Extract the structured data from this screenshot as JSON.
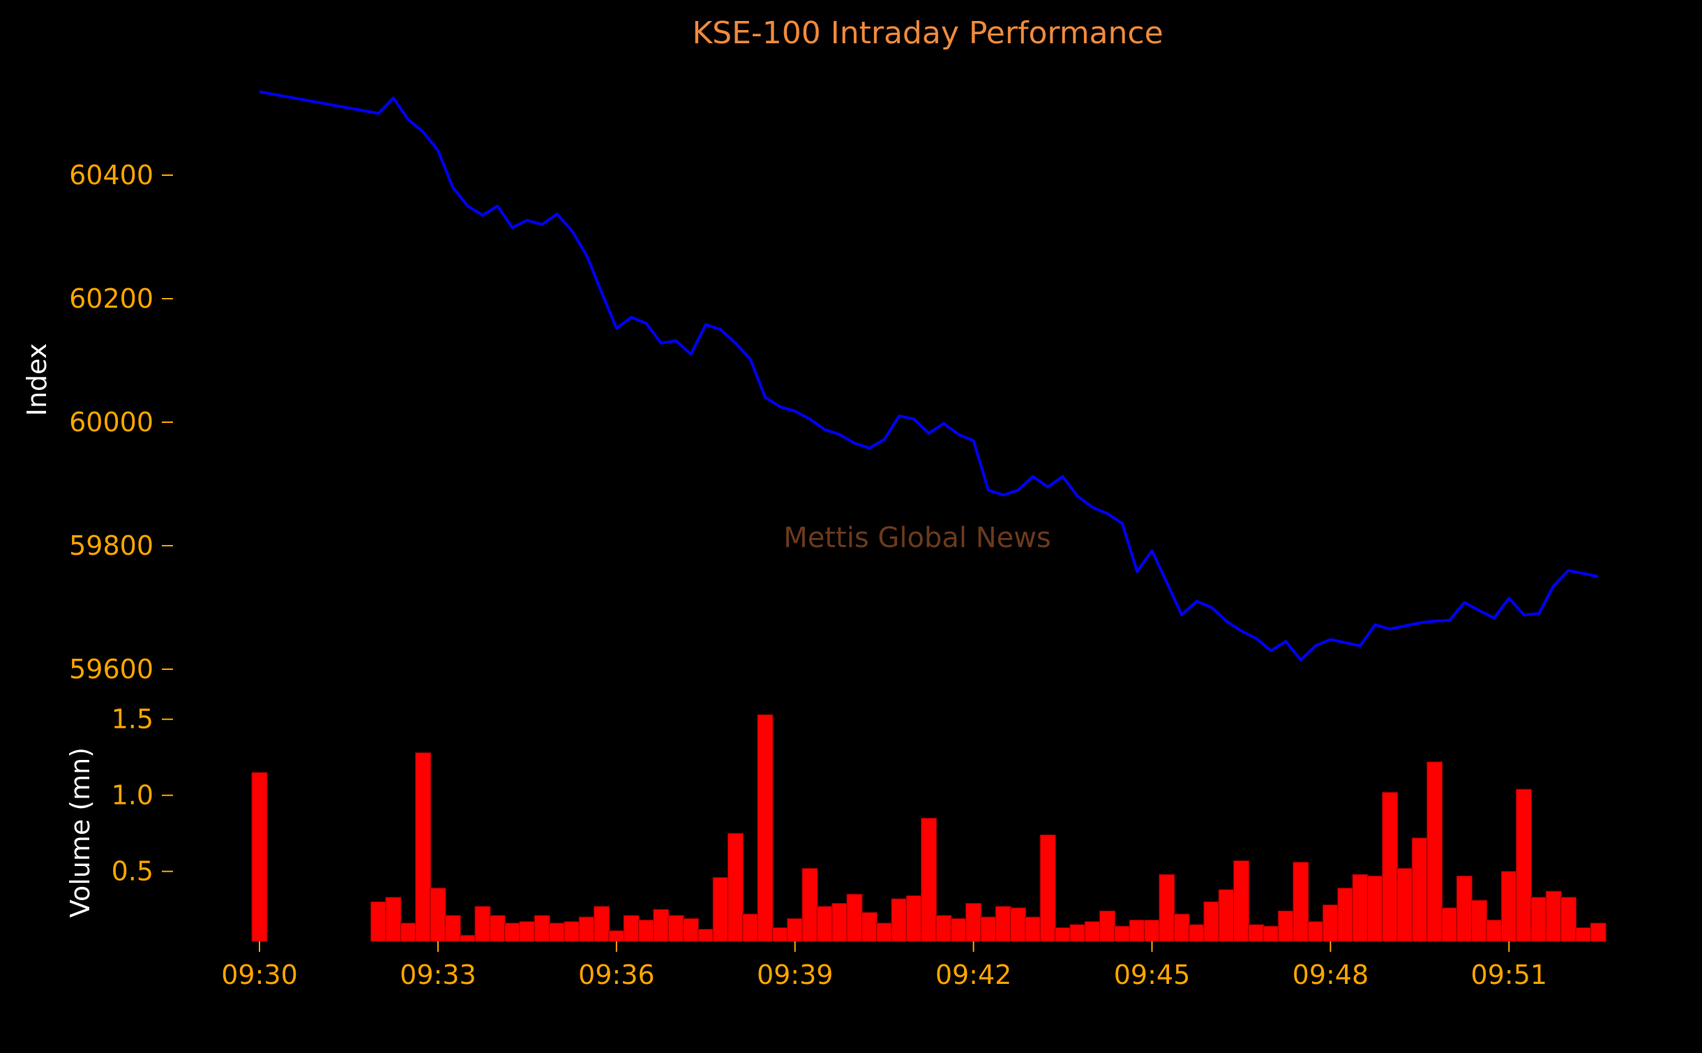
{
  "chart_data": [
    {
      "type": "line",
      "title": "KSE-100 Intraday Performance",
      "xlabel": "",
      "ylabel": "Index",
      "ylim": [
        59580,
        60560
      ],
      "yticks": [
        59600,
        59800,
        60000,
        60200,
        60400
      ],
      "grid": false,
      "colors": {
        "line": "#0000ff"
      },
      "series": [
        {
          "x": [
            "09:30",
            "09:32",
            "09:32:15",
            "09:32:30",
            "09:32:45",
            "09:33",
            "09:33:15",
            "09:33:30",
            "09:33:45",
            "09:34",
            "09:34:15",
            "09:34:30",
            "09:34:45",
            "09:35",
            "09:35:15",
            "09:35:30",
            "09:35:45",
            "09:36",
            "09:36:15",
            "09:36:30",
            "09:36:45",
            "09:37",
            "09:37:15",
            "09:37:30",
            "09:37:45",
            "09:38",
            "09:38:15",
            "09:38:30",
            "09:38:45",
            "09:39",
            "09:39:15",
            "09:39:30",
            "09:39:45",
            "09:40",
            "09:40:15",
            "09:40:30",
            "09:40:45",
            "09:41",
            "09:41:15",
            "09:41:30",
            "09:41:45",
            "09:42",
            "09:42:15",
            "09:42:30",
            "09:42:45",
            "09:43",
            "09:43:15",
            "09:43:30",
            "09:43:45",
            "09:44",
            "09:44:15",
            "09:44:30",
            "09:44:45",
            "09:45",
            "09:45:15",
            "09:45:30",
            "09:45:45",
            "09:46",
            "09:46:15",
            "09:46:30",
            "09:46:45",
            "09:47",
            "09:47:15",
            "09:47:30",
            "09:47:45",
            "09:48",
            "09:48:15",
            "09:48:30",
            "09:48:45",
            "09:49",
            "09:49:15",
            "09:49:30",
            "09:49:45",
            "09:50",
            "09:50:15",
            "09:50:30",
            "09:50:45",
            "09:51",
            "09:51:15",
            "09:51:30",
            "09:51:45",
            "09:52",
            "09:52:15",
            "09:52:30"
          ],
          "values": [
            60535,
            60500,
            60525,
            60490,
            60470,
            60440,
            60380,
            60350,
            60335,
            60350,
            60315,
            60327,
            60320,
            60337,
            60310,
            60270,
            60210,
            60152,
            60170,
            60160,
            60128,
            60132,
            60110,
            60158,
            60150,
            60128,
            60102,
            60040,
            60025,
            60018,
            60005,
            59988,
            59980,
            59966,
            59958,
            59972,
            60010,
            60005,
            59982,
            59998,
            59980,
            59970,
            59890,
            59882,
            59890,
            59912,
            59895,
            59912,
            59880,
            59862,
            59852,
            59836,
            59758,
            59792,
            59740,
            59688,
            59710,
            59700,
            59678,
            59662,
            59650,
            59630,
            59645,
            59615,
            59638,
            59648,
            59643,
            59638,
            59672,
            59665,
            59670,
            59675,
            59678,
            59679,
            59708,
            59695,
            59683,
            59715,
            59688,
            59690,
            59735,
            59760,
            59755,
            59750
          ]
        }
      ]
    },
    {
      "type": "bar",
      "xlabel": "",
      "ylabel": "Volume (mn)",
      "ylim": [
        0.04,
        1.54
      ],
      "yticks": [
        0.5,
        1.0,
        1.5
      ],
      "xticks": [
        "09:30",
        "09:33",
        "09:36",
        "09:39",
        "09:42",
        "09:45",
        "09:48",
        "09:51"
      ],
      "grid": false,
      "colors": {
        "bar": "#ff0000",
        "edge": "#8b0000"
      },
      "x": [
        "09:30",
        "09:32",
        "09:32:15",
        "09:32:30",
        "09:32:45",
        "09:33",
        "09:33:15",
        "09:33:30",
        "09:33:45",
        "09:34",
        "09:34:15",
        "09:34:30",
        "09:34:45",
        "09:35",
        "09:35:15",
        "09:35:30",
        "09:35:45",
        "09:36",
        "09:36:15",
        "09:36:30",
        "09:36:45",
        "09:37",
        "09:37:15",
        "09:37:30",
        "09:37:45",
        "09:38",
        "09:38:15",
        "09:38:30",
        "09:38:45",
        "09:39",
        "09:39:15",
        "09:39:30",
        "09:39:45",
        "09:40",
        "09:40:15",
        "09:40:30",
        "09:40:45",
        "09:41",
        "09:41:15",
        "09:41:30",
        "09:41:45",
        "09:42",
        "09:42:15",
        "09:42:30",
        "09:42:45",
        "09:43",
        "09:43:15",
        "09:43:30",
        "09:43:45",
        "09:44",
        "09:44:15",
        "09:44:30",
        "09:44:45",
        "09:45",
        "09:45:15",
        "09:45:30",
        "09:45:45",
        "09:46",
        "09:46:15",
        "09:46:30",
        "09:46:45",
        "09:47",
        "09:47:15",
        "09:47:30",
        "09:47:45",
        "09:48",
        "09:48:15",
        "09:48:30",
        "09:48:45",
        "09:49",
        "09:49:15",
        "09:49:30",
        "09:49:45",
        "09:50",
        "09:50:15",
        "09:50:30",
        "09:50:45",
        "09:51",
        "09:51:15",
        "09:51:30",
        "09:51:45",
        "09:52",
        "09:52:15",
        "09:52:30"
      ],
      "values": [
        1.15,
        0.3,
        0.33,
        0.16,
        1.28,
        0.39,
        0.21,
        0.08,
        0.27,
        0.21,
        0.16,
        0.17,
        0.21,
        0.16,
        0.17,
        0.2,
        0.27,
        0.11,
        0.21,
        0.18,
        0.25,
        0.21,
        0.19,
        0.12,
        0.46,
        0.75,
        0.22,
        1.53,
        0.13,
        0.19,
        0.52,
        0.27,
        0.29,
        0.35,
        0.23,
        0.16,
        0.32,
        0.34,
        0.85,
        0.21,
        0.19,
        0.29,
        0.2,
        0.27,
        0.26,
        0.2,
        0.74,
        0.13,
        0.15,
        0.17,
        0.24,
        0.14,
        0.18,
        0.18,
        0.48,
        0.22,
        0.15,
        0.3,
        0.38,
        0.57,
        0.15,
        0.14,
        0.24,
        0.56,
        0.17,
        0.28,
        0.39,
        0.48,
        0.47,
        1.02,
        0.52,
        0.72,
        1.22,
        0.26,
        0.47,
        0.31,
        0.18,
        0.5,
        1.04,
        0.33,
        0.37,
        0.33,
        0.13,
        0.16
      ]
    }
  ],
  "watermark": "Mettis Global News"
}
